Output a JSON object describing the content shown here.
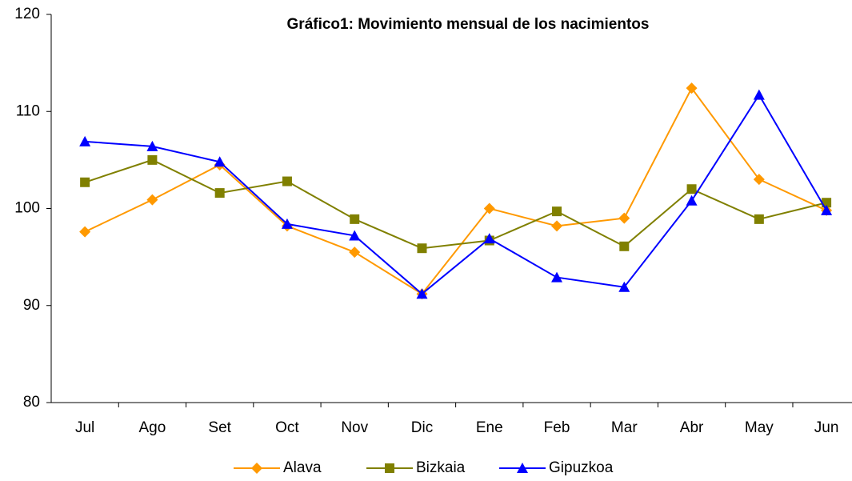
{
  "chart_data": {
    "type": "line",
    "title": "Gráfico1: Movimiento mensual de los nacimientos",
    "categories": [
      "Jul",
      "Ago",
      "Set",
      "Oct",
      "Nov",
      "Dic",
      "Ene",
      "Feb",
      "Mar",
      "Abr",
      "May",
      "Jun"
    ],
    "series": [
      {
        "name": "Alava",
        "color": "#ff9900",
        "marker": "diamond",
        "values": [
          97.6,
          100.9,
          104.5,
          98.2,
          95.5,
          91.2,
          100.0,
          98.2,
          99.0,
          112.4,
          103.0,
          99.8
        ]
      },
      {
        "name": "Bizkaia",
        "color": "#808000",
        "marker": "square",
        "values": [
          102.7,
          105.0,
          101.6,
          102.8,
          98.9,
          95.9,
          96.7,
          99.7,
          96.1,
          102.0,
          98.9,
          100.6
        ]
      },
      {
        "name": "Gipuzkoa",
        "color": "#0000ff",
        "marker": "triangle",
        "values": [
          106.9,
          106.4,
          104.8,
          98.4,
          97.2,
          91.2,
          96.9,
          92.9,
          91.9,
          100.8,
          111.7,
          99.8
        ]
      }
    ],
    "ylim": [
      80,
      120
    ],
    "yticks": [
      80,
      90,
      100,
      110,
      120
    ],
    "grid": false,
    "legend": "bottom"
  }
}
